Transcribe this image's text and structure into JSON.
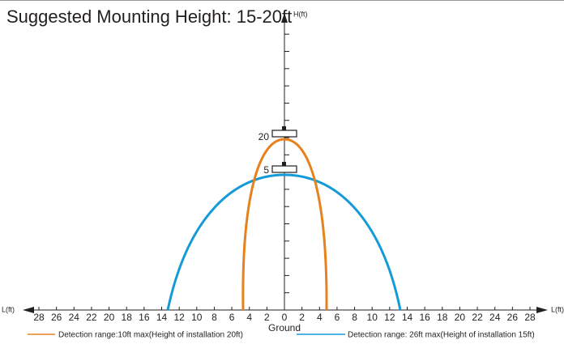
{
  "title": "Suggested Mounting Height: 15-20ft",
  "y_axis_label": "H(ft)",
  "x_axis_label_left": "L(ft)",
  "x_axis_label_right": "L(ft)",
  "x_tick_labels": [
    28,
    26,
    24,
    22,
    20,
    18,
    16,
    14,
    12,
    10,
    8,
    6,
    4,
    2,
    0,
    2,
    4,
    6,
    8,
    10,
    12,
    14,
    16,
    18,
    20,
    22,
    24,
    26,
    28
  ],
  "y_tick_labels": [
    "20",
    "5"
  ],
  "ground_label": "Ground",
  "legend": [
    "Detection range:10ft max(Height of installation 20ft)",
    "Detection range: 26ft max(Height of installation 15ft)"
  ]
}
